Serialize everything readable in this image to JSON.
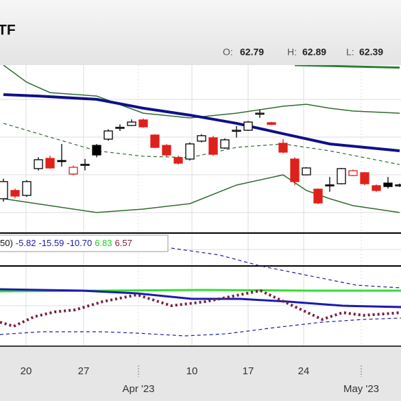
{
  "chart_data": {
    "type": "candlestick",
    "title": "TF",
    "header": {
      "open_label": "O:",
      "open": "62.79",
      "high_label": "H:",
      "high": "62.89",
      "low_label": "L:",
      "low": "62.39"
    },
    "indicator_legend": {
      "prefix": "50)",
      "values": [
        "-5.82",
        "-15.59",
        "-10.70",
        "6.83",
        "6.57"
      ],
      "colors": [
        "#1a1aa6",
        "#1a1aa6",
        "#1a1aa6",
        "#22cc22",
        "#7a1f3d"
      ]
    },
    "xtick_labels": [
      "20",
      "27",
      "Apr '23",
      "10",
      "17",
      "24",
      "May '23"
    ],
    "ylim": [
      58,
      68
    ],
    "up_color": "#000000",
    "down_color": "#e0201b",
    "open": [
      59.88,
      60.38,
      60.08,
      61.71,
      62.33,
      62.2,
      61.38,
      61.95,
      63.12,
      63.5,
      64.2,
      64.33,
      64.67,
      63.75,
      63.12,
      62.38,
      62.29,
      63.38,
      63.58,
      62.96,
      64.0,
      64.04,
      65.05,
      64.5,
      63.25,
      62.29,
      61.33,
      60.46,
      60.72,
      60.79,
      61.29,
      61.46,
      60.67,
      60.83,
      60.7
    ],
    "high": [
      61.1,
      60.5,
      61.0,
      62.4,
      62.5,
      63.21,
      61.9,
      62.3,
      63.2,
      64.1,
      64.4,
      64.7,
      64.75,
      63.8,
      63.2,
      62.5,
      63.3,
      63.8,
      63.7,
      63.55,
      64.3,
      64.6,
      65.3,
      64.55,
      63.5,
      62.4,
      61.8,
      60.5,
      61.2,
      61.75,
      61.65,
      61.5,
      60.75,
      61.2,
      60.8
    ],
    "low": [
      59.7,
      59.9,
      60.0,
      61.6,
      61.7,
      61.83,
      61.3,
      61.6,
      62.4,
      63.4,
      64.0,
      64.3,
      64.2,
      62.95,
      62.45,
      61.95,
      62.2,
      63.3,
      62.5,
      62.9,
      63.6,
      64.0,
      64.8,
      64.35,
      62.65,
      60.7,
      61.3,
      59.55,
      60.3,
      60.75,
      61.25,
      60.7,
      60.3,
      60.5,
      60.6
    ],
    "close": [
      60.92,
      60.04,
      60.92,
      62.25,
      61.75,
      62.15,
      61.79,
      61.97,
      62.54,
      64.0,
      64.22,
      64.54,
      64.25,
      63.0,
      62.54,
      62.04,
      63.21,
      63.71,
      62.58,
      63.46,
      64.04,
      64.54,
      65.08,
      64.4,
      62.71,
      60.92,
      61.75,
      59.62,
      60.7,
      61.71,
      61.58,
      60.79,
      60.38,
      60.62,
      60.72
    ],
    "lines": [
      {
        "color": "#2e7d32",
        "width": 3,
        "dash": false,
        "x": [
          25,
          34
        ],
        "values": [
          68,
          67.85
        ]
      },
      {
        "color": "#2e6b2e",
        "width": 1.5,
        "dash": false,
        "x": [
          0,
          2,
          4,
          8,
          12,
          16,
          20,
          24,
          26,
          28,
          30,
          34
        ],
        "values": [
          68,
          66.96,
          66.33,
          66.12,
          65.08,
          64.79,
          65.08,
          65.5,
          65.62,
          65.38,
          65.21,
          65.08
        ]
      },
      {
        "color": "#2e6b2e",
        "width": 1.5,
        "dash": false,
        "x": [
          0,
          4,
          8,
          12,
          16,
          20,
          24,
          26,
          28,
          30,
          34
        ],
        "values": [
          59.88,
          59.46,
          59.04,
          59.25,
          59.58,
          60.71,
          61.33,
          60.38,
          59.88,
          59.46,
          59.04
        ]
      },
      {
        "color": "#2e6b2e",
        "width": 1.2,
        "dash": true,
        "x": [
          0,
          4,
          8,
          12,
          16,
          20,
          24,
          28,
          34
        ],
        "values": [
          64.46,
          63.62,
          62.79,
          62.46,
          62.38,
          63.0,
          63.21,
          62.79,
          61.96
        ]
      },
      {
        "color": "#10108a",
        "width": 4,
        "dash": false,
        "x": [
          0,
          3,
          8,
          12,
          16,
          20,
          24,
          28,
          34
        ],
        "values": [
          66.21,
          66.12,
          65.92,
          65.38,
          64.96,
          64.46,
          63.83,
          63.21,
          62.79
        ]
      }
    ]
  }
}
